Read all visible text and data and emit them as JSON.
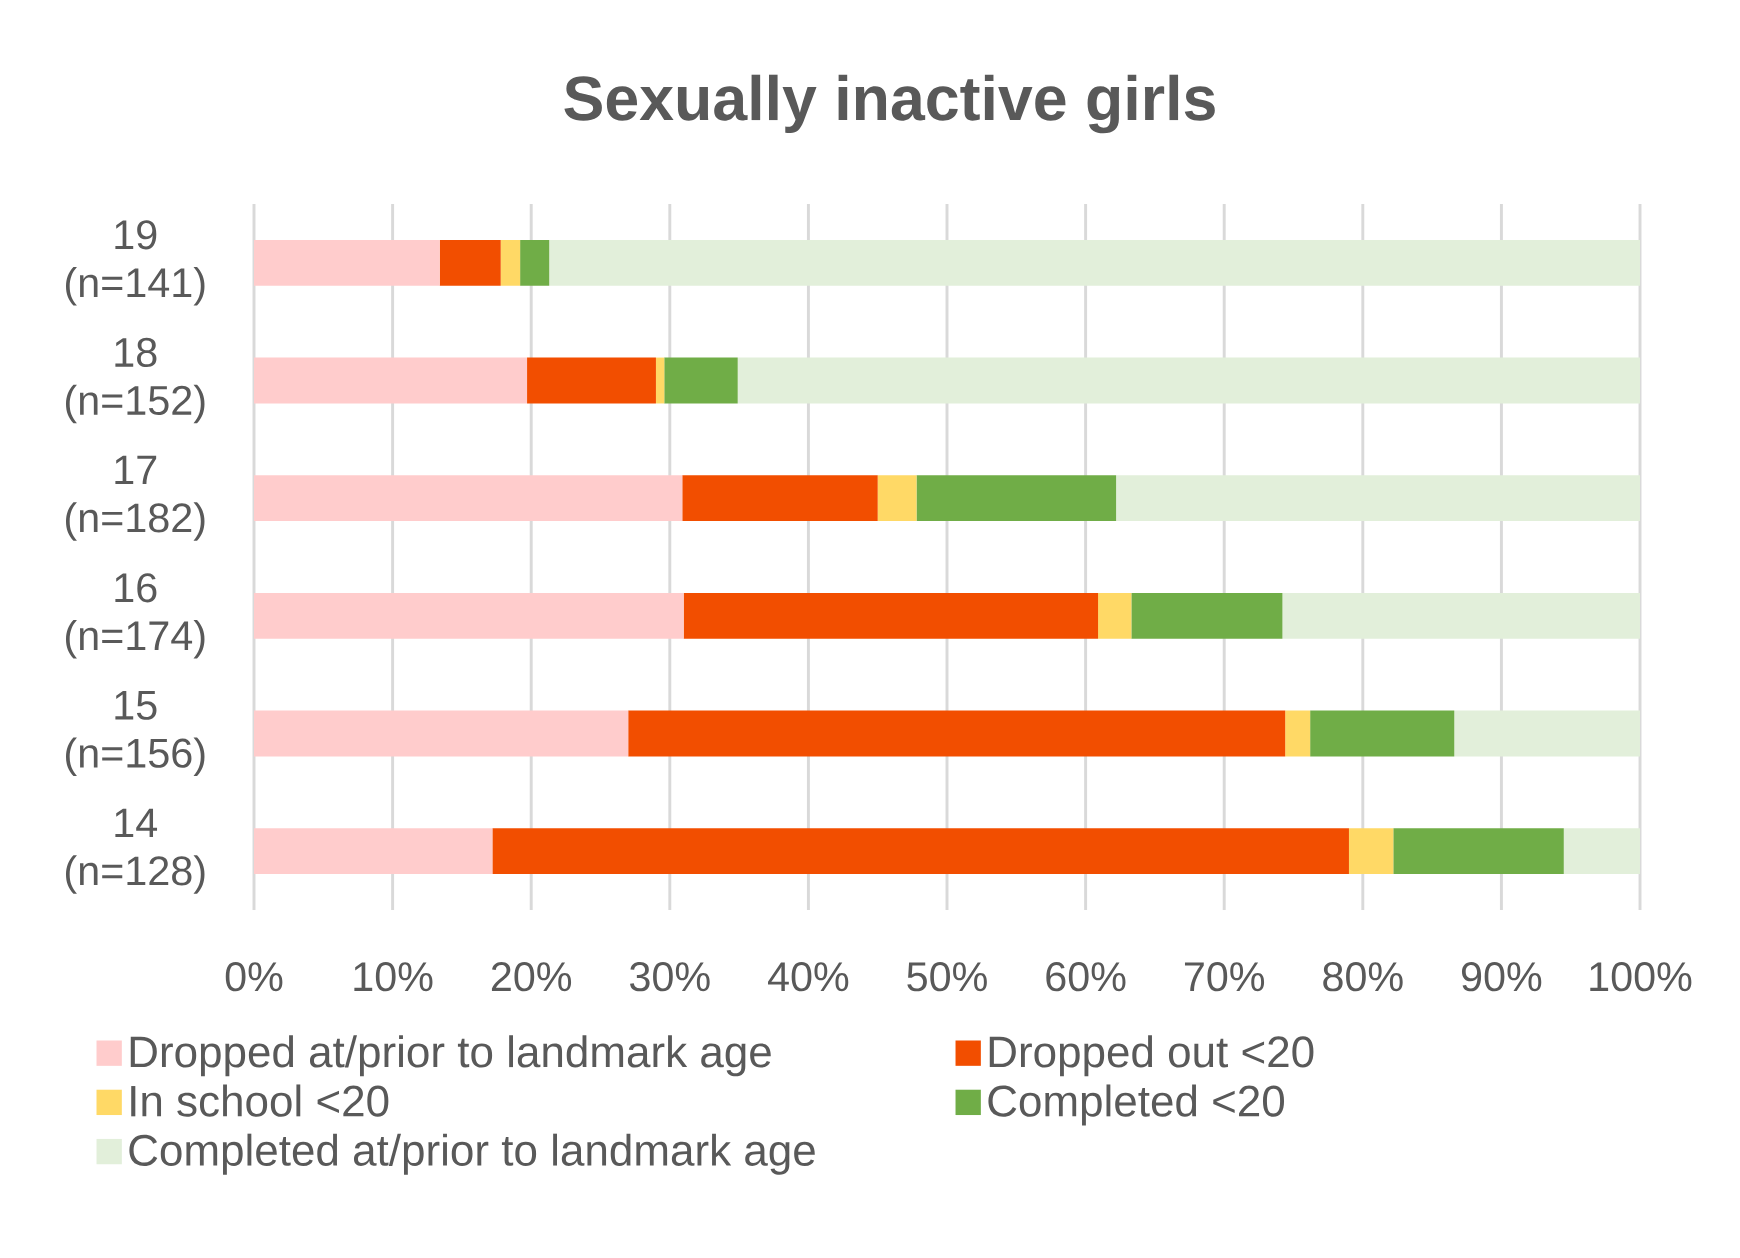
{
  "chart_data": {
    "type": "bar",
    "orientation": "horizontal",
    "stacked": true,
    "title": "Sexually inactive girls",
    "categories": [
      "19 (n=141)",
      "18 (n=152)",
      "17 (n=182)",
      "16 (n=174)",
      "15 (n=156)",
      "14 (n=128)"
    ],
    "series": [
      {
        "name": "Dropped at/prior to landmark age",
        "color": "#ffcccc",
        "values": [
          13.4,
          19.7,
          30.9,
          31.0,
          27.0,
          17.2
        ]
      },
      {
        "name": "Dropped out <20",
        "color": "#f24e00",
        "values": [
          4.4,
          9.3,
          14.1,
          29.9,
          47.4,
          61.8
        ]
      },
      {
        "name": "In school <20",
        "color": "#ffd966",
        "values": [
          1.4,
          0.6,
          2.8,
          2.4,
          1.8,
          3.2
        ]
      },
      {
        "name": "Completed <20",
        "color": "#70ad47",
        "values": [
          2.1,
          5.3,
          14.4,
          10.9,
          10.4,
          12.3
        ]
      },
      {
        "name": "Completed at/prior to landmark age",
        "color": "#e2efda",
        "values": [
          78.7,
          65.1,
          37.8,
          25.8,
          13.4,
          5.5
        ]
      }
    ],
    "xlim": [
      0,
      100
    ],
    "xticks": [
      {
        "value": 0,
        "label": "0%"
      },
      {
        "value": 10,
        "label": "10%"
      },
      {
        "value": 20,
        "label": "20%"
      },
      {
        "value": 30,
        "label": "30%"
      },
      {
        "value": 40,
        "label": "40%"
      },
      {
        "value": 50,
        "label": "50%"
      },
      {
        "value": 60,
        "label": "60%"
      },
      {
        "value": 70,
        "label": "70%"
      },
      {
        "value": 80,
        "label": "80%"
      },
      {
        "value": 90,
        "label": "90%"
      },
      {
        "value": 100,
        "label": "100%"
      }
    ],
    "grid": "x",
    "legend": "bottom"
  }
}
